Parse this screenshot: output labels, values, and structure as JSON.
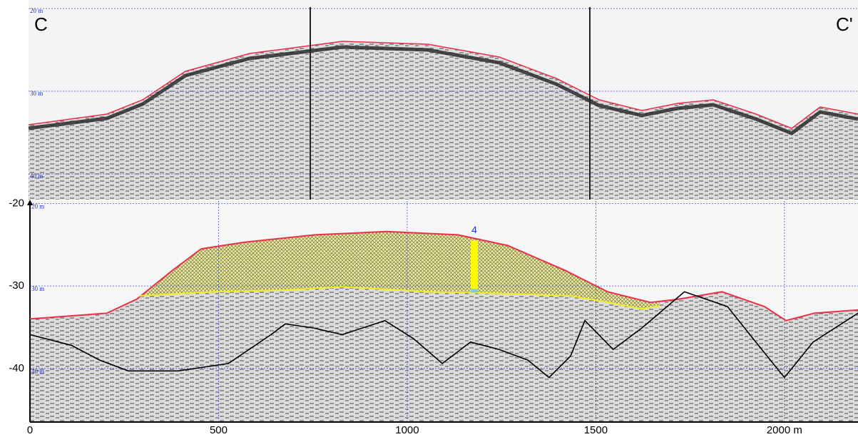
{
  "top_panel": {
    "start_label": "C",
    "end_label": "C'",
    "depth_labels": [
      "20 m",
      "30 m",
      "40 m"
    ]
  },
  "chart_data": {
    "type": "profile",
    "xlim": [
      0,
      2195
    ],
    "ylim": [
      -46.5,
      -19.7
    ],
    "xticks": [
      0,
      500,
      1000,
      1500,
      {
        "value": 2000,
        "label": "2000 m"
      }
    ],
    "yticks": [
      -20,
      -30,
      -40
    ],
    "grid": true,
    "depth_labels": [
      "20 m",
      "30 m",
      "40 m"
    ],
    "series": [
      {
        "color": "#e8304a",
        "x": [
          0,
          204,
          283,
          378,
          454,
          567,
          756,
          945,
          1134,
          1267,
          1418,
          1531,
          1645,
          1720,
          1834,
          1947,
          2004,
          2079,
          2195
        ],
        "values": [
          -34.0,
          -33.3,
          -31.6,
          -28.1,
          -25.5,
          -24.7,
          -23.8,
          -23.4,
          -23.8,
          -25.1,
          -28.1,
          -30.7,
          -32.0,
          -31.6,
          -30.7,
          -32.5,
          -34.2,
          -33.3,
          -32.9
        ]
      },
      {
        "color": "#f2ee22",
        "x": [
          289,
          488,
          677,
          828,
          1055,
          1244,
          1433,
          1546,
          1622,
          1669
        ],
        "values": [
          -31.2,
          -30.7,
          -30.5,
          -30.1,
          -30.7,
          -30.9,
          -31.2,
          -32.1,
          -32.8,
          -32.4
        ]
      },
      {
        "color": "#000000",
        "x": [
          0,
          110,
          185,
          261,
          393,
          526,
          639,
          677,
          752,
          828,
          941,
          1017,
          1093,
          1168,
          1244,
          1320,
          1376,
          1433,
          1471,
          1546,
          1622,
          1735,
          1849,
          1924,
          2000,
          2076,
          2195
        ],
        "values": [
          -35.9,
          -37.2,
          -39.0,
          -40.3,
          -40.3,
          -39.4,
          -35.9,
          -34.6,
          -35.1,
          -35.9,
          -34.2,
          -36.4,
          -39.4,
          -36.8,
          -37.7,
          -39.0,
          -41.1,
          -38.5,
          -34.2,
          -37.7,
          -35.1,
          -30.7,
          -32.5,
          -36.8,
          -41.1,
          -36.8,
          -33.3
        ]
      }
    ],
    "thickness_marker": {
      "label": "4",
      "x": 1178,
      "top": -24.5,
      "bottom": -30.8
    }
  }
}
